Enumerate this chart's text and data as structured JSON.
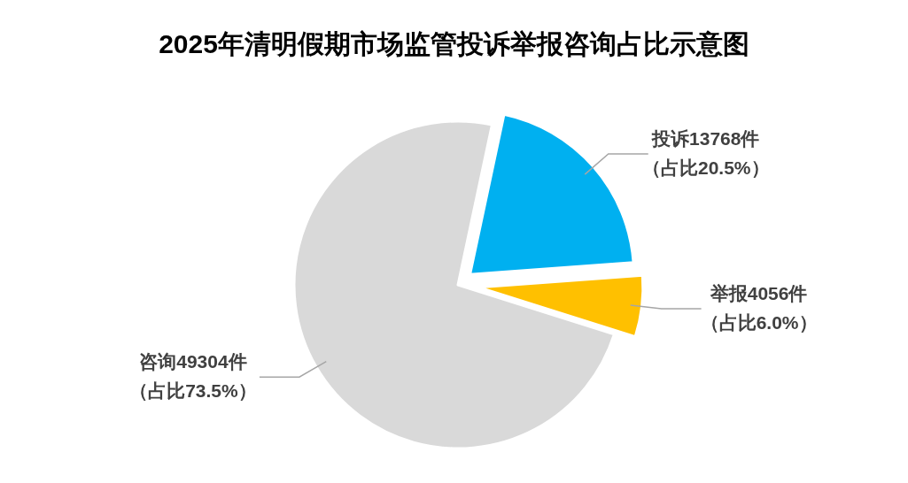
{
  "chart_data": {
    "type": "pie",
    "title": "2025年清明假期市场监管投诉举报咨询占比示意图",
    "categories": [
      "投诉",
      "举报",
      "咨询"
    ],
    "values": [
      13768,
      4056,
      49304
    ],
    "colors": [
      "#00b0f0",
      "#ffc000",
      "#d9d9d9"
    ],
    "value_labels": [
      "13768件",
      "4056件",
      "49304件"
    ],
    "annotations": [
      "（占比20.5%）",
      "（占比6.0%）",
      "（占比73.5%）"
    ]
  }
}
